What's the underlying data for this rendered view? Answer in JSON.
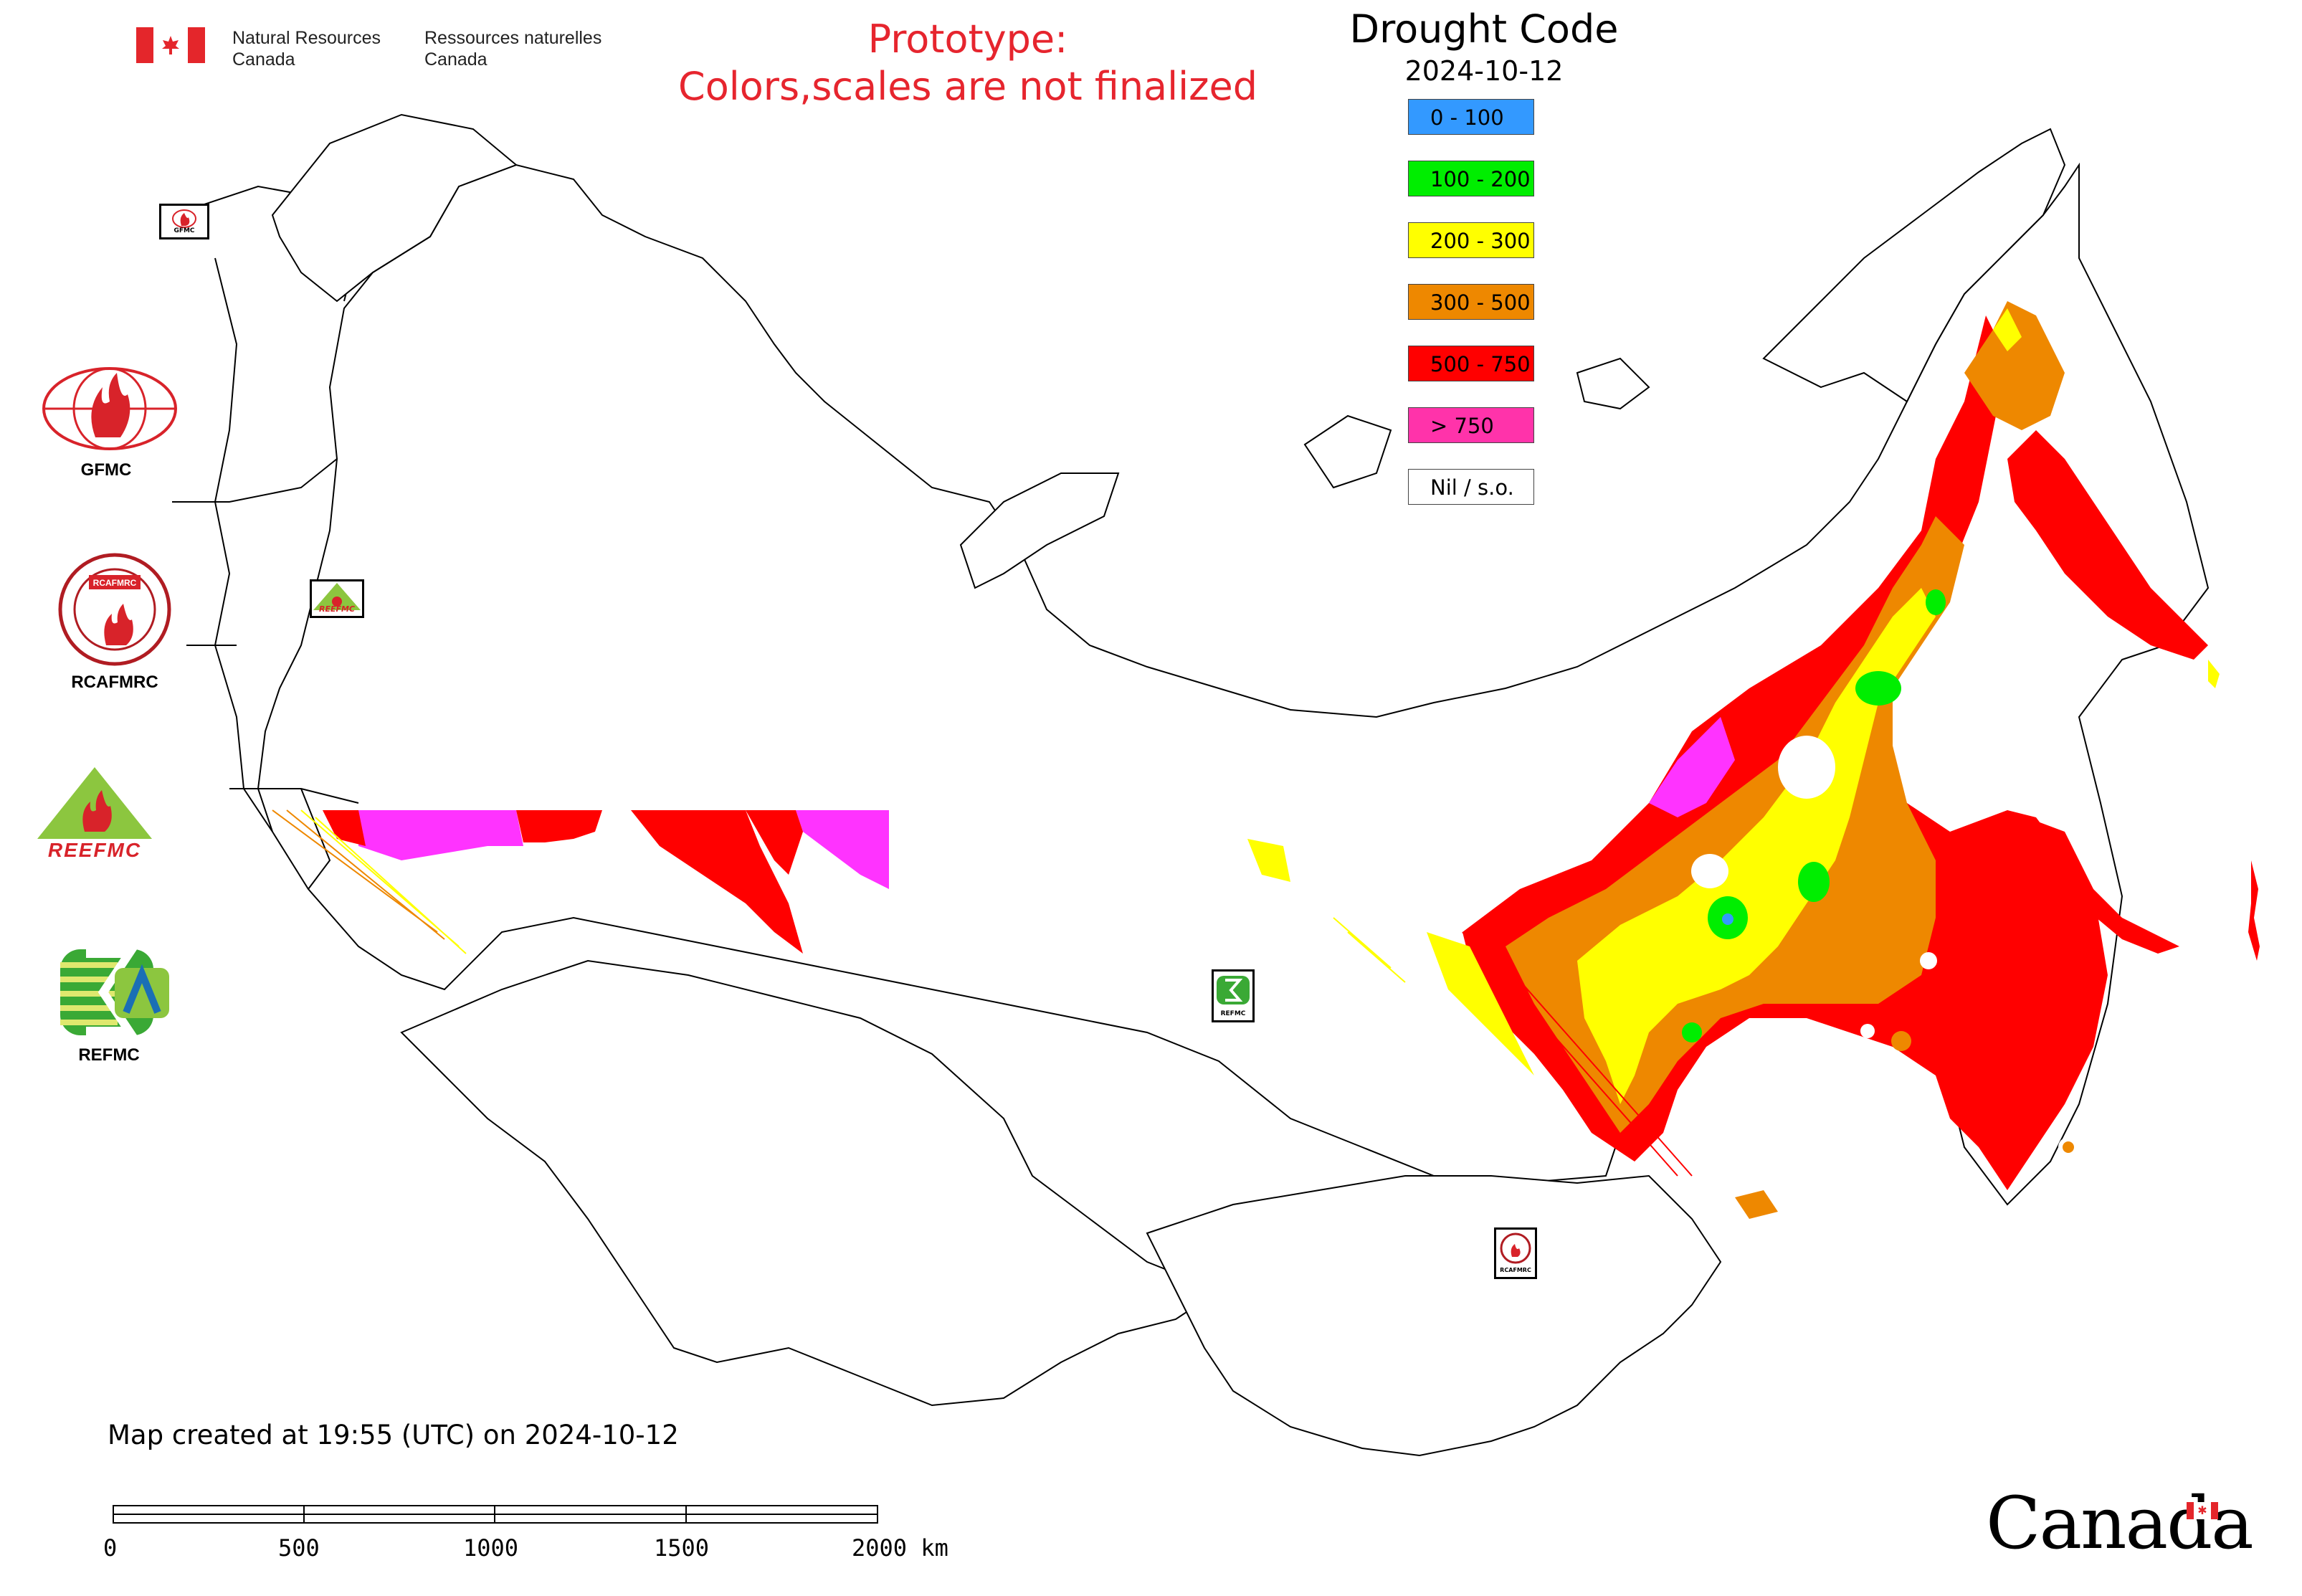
{
  "header": {
    "dept_en_line1": "Natural Resources",
    "dept_en_line2": "Canada",
    "dept_fr_line1": "Ressources naturelles",
    "dept_fr_line2": "Canada",
    "prototype_line1": "Prototype:",
    "prototype_line2": "Colors,scales are not finalized"
  },
  "legend": {
    "title": "Drought Code",
    "date": "2024-10-12",
    "items": [
      {
        "label": "0 - 100",
        "color": "#3399ff"
      },
      {
        "label": "100 - 200",
        "color": "#00ee00"
      },
      {
        "label": "200 - 300",
        "color": "#ffff00"
      },
      {
        "label": "300 - 500",
        "color": "#ee8800"
      },
      {
        "label": "500 - 750",
        "color": "#ff0000"
      },
      {
        "label": "> 750",
        "color": "#ff33aa"
      },
      {
        "label": "Nil / s.o.",
        "color": "#ffffff"
      }
    ]
  },
  "logos": {
    "gfmc": "GFMC",
    "rcafmrc": "RCAFMRC",
    "rcafmrc_seal": "RCAFMRC",
    "reefmc": "REEFMC",
    "refmc": "REFMC"
  },
  "map_markers": {
    "gfmc_small": "GFMC",
    "reefmc_small": "REEFMC",
    "refmc_small": "REFMC",
    "rcafmrc_small": "RCAFMRC"
  },
  "footer": {
    "created": "Map created at 19:55 (UTC) on 2024-10-12",
    "scale_ticks": [
      "0",
      "500",
      "1000",
      "1500",
      "2000 km"
    ]
  },
  "wordmark": "Canada",
  "colors": {
    "red": "#ff0000",
    "orange": "#ee8800",
    "yellow": "#ffff00",
    "green": "#00ee00",
    "blue": "#3399ff",
    "magenta": "#ff33ff"
  }
}
